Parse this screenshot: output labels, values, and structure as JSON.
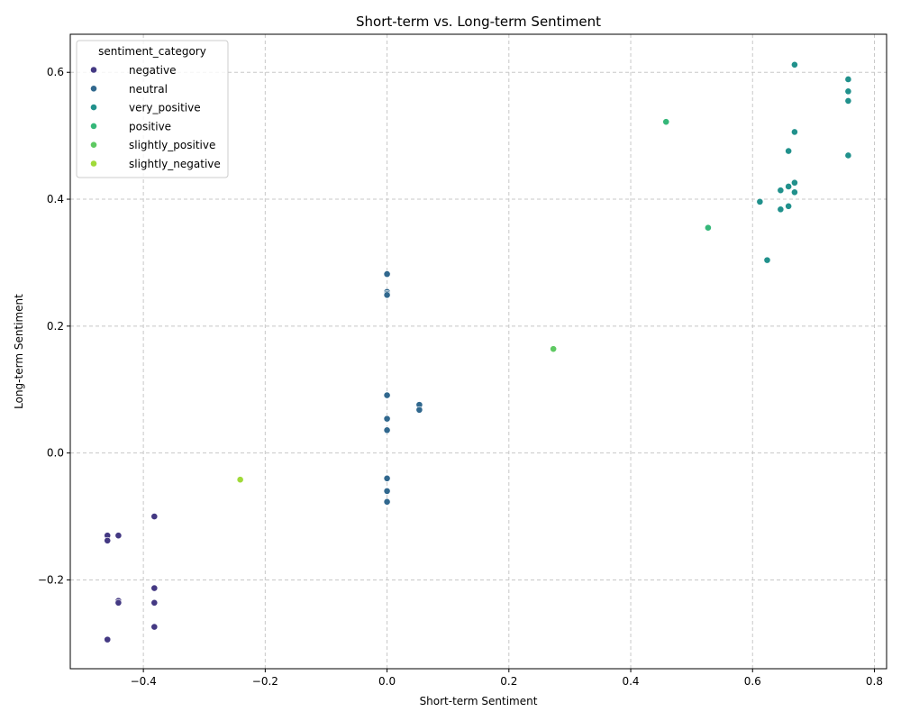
{
  "chart_data": {
    "type": "scatter",
    "title": "Short-term vs. Long-term Sentiment",
    "xlabel": "Short-term Sentiment",
    "ylabel": "Long-term Sentiment",
    "xlim": [
      -0.52,
      0.82
    ],
    "ylim": [
      -0.34,
      0.66
    ],
    "xticks": [
      -0.4,
      -0.2,
      0.0,
      0.2,
      0.4,
      0.6,
      0.8
    ],
    "xtick_labels": [
      "−0.4",
      "−0.2",
      "0.0",
      "0.2",
      "0.4",
      "0.6",
      "0.8"
    ],
    "yticks": [
      -0.2,
      0.0,
      0.2,
      0.4,
      0.6
    ],
    "ytick_labels": [
      "−0.2",
      "0.0",
      "0.2",
      "0.4",
      "0.6"
    ],
    "grid": true,
    "legend": {
      "title": "sentiment_category",
      "position": "upper-left"
    },
    "series": [
      {
        "name": "negative",
        "color": "#443983",
        "points": [
          [
            -0.382,
            -0.1
          ],
          [
            -0.459,
            -0.13
          ],
          [
            -0.459,
            -0.138
          ],
          [
            -0.441,
            -0.13
          ],
          [
            -0.382,
            -0.213
          ],
          [
            -0.441,
            -0.233
          ],
          [
            -0.441,
            -0.236
          ],
          [
            -0.382,
            -0.236
          ],
          [
            -0.382,
            -0.274
          ],
          [
            -0.459,
            -0.294
          ]
        ]
      },
      {
        "name": "neutral",
        "color": "#31688e",
        "points": [
          [
            0.0,
            0.282
          ],
          [
            0.0,
            0.254
          ],
          [
            0.0,
            0.251
          ],
          [
            0.0,
            0.249
          ],
          [
            0.0,
            0.091
          ],
          [
            0.0,
            0.054
          ],
          [
            0.0,
            0.036
          ],
          [
            0.053,
            0.076
          ],
          [
            0.053,
            0.068
          ],
          [
            0.0,
            -0.04
          ],
          [
            0.0,
            -0.06
          ],
          [
            0.0,
            -0.077
          ]
        ]
      },
      {
        "name": "very_positive",
        "color": "#21918c",
        "points": [
          [
            0.669,
            0.612
          ],
          [
            0.757,
            0.589
          ],
          [
            0.757,
            0.57
          ],
          [
            0.757,
            0.555
          ],
          [
            0.669,
            0.506
          ],
          [
            0.659,
            0.476
          ],
          [
            0.757,
            0.469
          ],
          [
            0.669,
            0.426
          ],
          [
            0.659,
            0.42
          ],
          [
            0.646,
            0.414
          ],
          [
            0.669,
            0.411
          ],
          [
            0.612,
            0.396
          ],
          [
            0.659,
            0.389
          ],
          [
            0.646,
            0.384
          ],
          [
            0.624,
            0.304
          ]
        ]
      },
      {
        "name": "positive",
        "color": "#35b779",
        "points": [
          [
            0.458,
            0.522
          ],
          [
            0.527,
            0.355
          ]
        ]
      },
      {
        "name": "slightly_positive",
        "color": "#5ec962",
        "points": [
          [
            0.273,
            0.164
          ]
        ]
      },
      {
        "name": "slightly_negative",
        "color": "#a0da39",
        "points": [
          [
            -0.241,
            -0.042
          ]
        ]
      }
    ]
  }
}
